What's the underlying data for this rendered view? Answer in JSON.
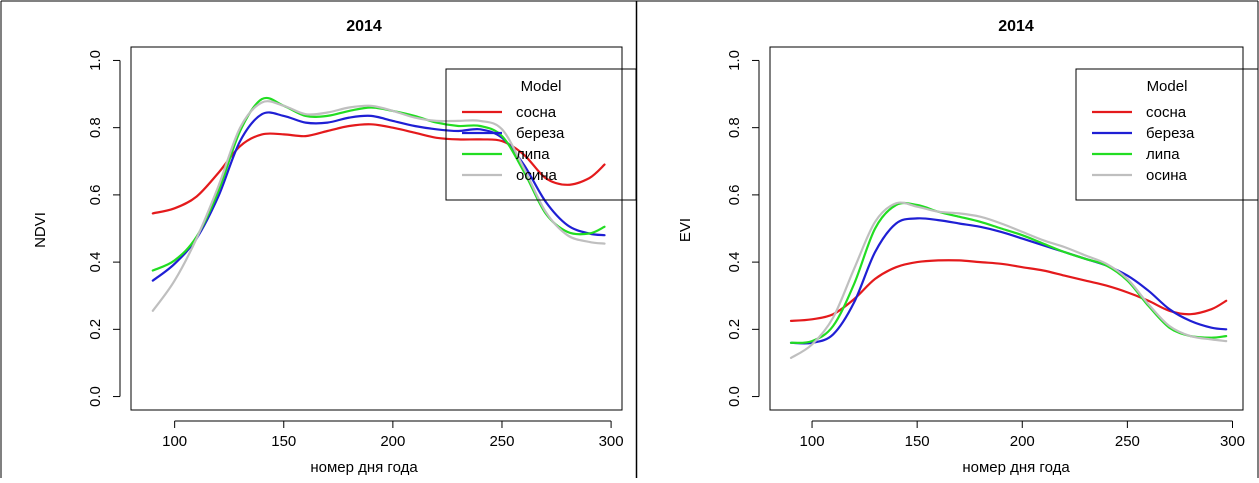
{
  "chart_data": [
    {
      "type": "line",
      "title": "2014",
      "xlabel": "номер дня года",
      "ylabel": "NDVI",
      "xlim": [
        80,
        305
      ],
      "ylim": [
        -0.04,
        1.04
      ],
      "xticks": [
        100,
        150,
        200,
        250,
        300
      ],
      "yticks": [
        0.0,
        0.2,
        0.4,
        0.6,
        0.8,
        1.0
      ],
      "xtick_labels": [
        "100",
        "150",
        "200",
        "250",
        "300"
      ],
      "ytick_labels": [
        "0.0",
        "0.2",
        "0.4",
        "0.6",
        "0.8",
        "1.0"
      ],
      "grid": false,
      "legend": {
        "title": "Model",
        "position": "top-right"
      },
      "series": [
        {
          "name": "сосна",
          "color": "#e41a1c",
          "x": [
            90,
            100,
            110,
            120,
            130,
            140,
            150,
            160,
            170,
            180,
            190,
            200,
            210,
            220,
            230,
            240,
            250,
            260,
            270,
            280,
            290,
            297
          ],
          "y": [
            0.545,
            0.56,
            0.595,
            0.665,
            0.745,
            0.78,
            0.78,
            0.775,
            0.79,
            0.805,
            0.81,
            0.8,
            0.785,
            0.77,
            0.765,
            0.765,
            0.76,
            0.72,
            0.65,
            0.63,
            0.65,
            0.69
          ]
        },
        {
          "name": "береза",
          "color": "#1f1fd4",
          "x": [
            90,
            100,
            110,
            120,
            130,
            140,
            150,
            160,
            170,
            180,
            190,
            200,
            210,
            220,
            230,
            240,
            250,
            260,
            270,
            280,
            290,
            297
          ],
          "y": [
            0.345,
            0.395,
            0.47,
            0.595,
            0.76,
            0.84,
            0.835,
            0.815,
            0.815,
            0.83,
            0.835,
            0.82,
            0.805,
            0.795,
            0.79,
            0.795,
            0.77,
            0.69,
            0.58,
            0.51,
            0.485,
            0.48
          ]
        },
        {
          "name": "липа",
          "color": "#22dd22",
          "x": [
            90,
            100,
            110,
            120,
            130,
            140,
            150,
            160,
            170,
            180,
            190,
            200,
            210,
            220,
            230,
            240,
            250,
            260,
            270,
            280,
            290,
            297
          ],
          "y": [
            0.375,
            0.405,
            0.475,
            0.61,
            0.79,
            0.885,
            0.865,
            0.835,
            0.835,
            0.85,
            0.86,
            0.85,
            0.835,
            0.815,
            0.805,
            0.805,
            0.775,
            0.67,
            0.545,
            0.49,
            0.485,
            0.505
          ]
        },
        {
          "name": "осина",
          "color": "#bfbfbf",
          "x": [
            90,
            100,
            110,
            120,
            130,
            140,
            150,
            160,
            170,
            180,
            190,
            200,
            210,
            220,
            230,
            240,
            250,
            260,
            270,
            280,
            290,
            297
          ],
          "y": [
            0.255,
            0.345,
            0.47,
            0.625,
            0.8,
            0.875,
            0.865,
            0.84,
            0.845,
            0.86,
            0.865,
            0.85,
            0.83,
            0.82,
            0.82,
            0.82,
            0.795,
            0.68,
            0.55,
            0.48,
            0.46,
            0.455
          ]
        }
      ]
    },
    {
      "type": "line",
      "title": "2014",
      "xlabel": "номер дня года",
      "ylabel": "EVI",
      "xlim": [
        80,
        305
      ],
      "ylim": [
        -0.04,
        1.04
      ],
      "xticks": [
        100,
        150,
        200,
        250,
        300
      ],
      "yticks": [
        0.0,
        0.2,
        0.4,
        0.6,
        0.8,
        1.0
      ],
      "xtick_labels": [
        "100",
        "150",
        "200",
        "250",
        "300"
      ],
      "ytick_labels": [
        "0.0",
        "0.2",
        "0.4",
        "0.6",
        "0.8",
        "1.0"
      ],
      "grid": false,
      "legend": {
        "title": "Model",
        "position": "top-right"
      },
      "series": [
        {
          "name": "сосна",
          "color": "#e41a1c",
          "x": [
            90,
            100,
            110,
            120,
            130,
            140,
            150,
            160,
            170,
            180,
            190,
            200,
            210,
            220,
            230,
            240,
            250,
            260,
            270,
            280,
            290,
            297
          ],
          "y": [
            0.225,
            0.23,
            0.245,
            0.29,
            0.35,
            0.385,
            0.4,
            0.405,
            0.405,
            0.4,
            0.395,
            0.385,
            0.375,
            0.36,
            0.345,
            0.33,
            0.31,
            0.285,
            0.255,
            0.245,
            0.26,
            0.285
          ]
        },
        {
          "name": "береза",
          "color": "#1f1fd4",
          "x": [
            90,
            100,
            110,
            120,
            130,
            140,
            150,
            160,
            170,
            180,
            190,
            200,
            210,
            220,
            230,
            240,
            250,
            260,
            270,
            280,
            290,
            297
          ],
          "y": [
            0.16,
            0.16,
            0.185,
            0.28,
            0.43,
            0.515,
            0.53,
            0.525,
            0.515,
            0.505,
            0.49,
            0.47,
            0.45,
            0.43,
            0.41,
            0.39,
            0.36,
            0.315,
            0.26,
            0.225,
            0.205,
            0.2
          ]
        },
        {
          "name": "липа",
          "color": "#22dd22",
          "x": [
            90,
            100,
            110,
            120,
            130,
            140,
            150,
            160,
            170,
            180,
            190,
            200,
            210,
            220,
            230,
            240,
            250,
            260,
            270,
            280,
            290,
            297
          ],
          "y": [
            0.16,
            0.165,
            0.21,
            0.335,
            0.5,
            0.57,
            0.57,
            0.55,
            0.535,
            0.52,
            0.5,
            0.48,
            0.455,
            0.43,
            0.41,
            0.39,
            0.345,
            0.27,
            0.205,
            0.18,
            0.175,
            0.18
          ]
        },
        {
          "name": "осина",
          "color": "#bfbfbf",
          "x": [
            90,
            100,
            110,
            120,
            130,
            140,
            150,
            160,
            170,
            180,
            190,
            200,
            210,
            220,
            230,
            240,
            250,
            260,
            270,
            280,
            290,
            297
          ],
          "y": [
            0.115,
            0.155,
            0.235,
            0.38,
            0.52,
            0.575,
            0.565,
            0.55,
            0.545,
            0.535,
            0.515,
            0.49,
            0.465,
            0.445,
            0.42,
            0.395,
            0.35,
            0.275,
            0.21,
            0.18,
            0.17,
            0.165
          ]
        }
      ]
    }
  ]
}
